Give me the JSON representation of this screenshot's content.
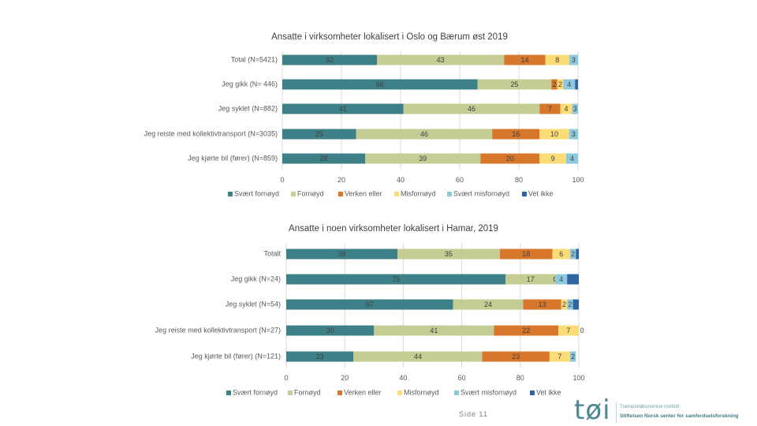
{
  "footer": {
    "page_label": "Side 11",
    "logo_text": "tøi",
    "org_line1": "Transportøkonomisk institutt",
    "org_line2": "Stiftelsen Norsk senter for samferdselsforskning"
  },
  "chart_data": [
    {
      "type": "bar",
      "orientation": "horizontal-stacked",
      "title": "Ansatte i virksomheter lokalisert i Oslo og Bærum øst 2019",
      "xlabel": "",
      "ylabel": "",
      "xlim": [
        0,
        100
      ],
      "xticks": [
        "0",
        "20",
        "40",
        "60",
        "80",
        "100"
      ],
      "grid": true,
      "legend": "bottom",
      "categories": [
        "Total (N=5421)",
        "Jeg gikk (N= 446)",
        "Jeg syklet (N=882)",
        "Jeg reiste med kollektivtransport (N=3035)",
        "Jeg kjørte bil (fører) (N=859)"
      ],
      "series": [
        {
          "name": "Svært fornøyd",
          "color": "#3d8087",
          "show_labels": true,
          "values": [
            32,
            66,
            41,
            25,
            28
          ]
        },
        {
          "name": "Fornøyd",
          "color": "#c5cd94",
          "show_labels": true,
          "values": [
            43,
            25,
            46,
            46,
            39
          ]
        },
        {
          "name": "Verken eller",
          "color": "#d7772c",
          "show_labels": true,
          "values": [
            14,
            2,
            7,
            16,
            20
          ]
        },
        {
          "name": "Misfornøyd",
          "color": "#fbdc77",
          "show_labels": true,
          "values": [
            8,
            2,
            4,
            10,
            9
          ]
        },
        {
          "name": "Svært misfornøyd",
          "color": "#8dc9de",
          "show_labels": true,
          "values": [
            3,
            4,
            3,
            3,
            4
          ]
        },
        {
          "name": "Vet ikke",
          "color": "#2f64a0",
          "show_labels": false,
          "values": [
            0,
            1,
            1,
            0,
            0
          ]
        }
      ]
    },
    {
      "type": "bar",
      "orientation": "horizontal-stacked",
      "title": "Ansatte i noen virksomheter lokalisert i Hamar, 2019",
      "xlabel": "",
      "ylabel": "",
      "xlim": [
        0,
        100
      ],
      "xticks": [
        "0",
        "20",
        "40",
        "60",
        "80",
        "100"
      ],
      "grid": true,
      "legend": "bottom",
      "categories": [
        "Totalt",
        "Jeg gikk (N=24)",
        "Jeg syklet (N=54)",
        "Jeg reiste med kollektivtransport (N=27)",
        "Jeg kjørte bil (fører) (N=121)"
      ],
      "series": [
        {
          "name": "Svært fornøyd",
          "color": "#3d8087",
          "show_labels": true,
          "values": [
            38,
            75,
            57,
            30,
            23
          ]
        },
        {
          "name": "Fornøyd",
          "color": "#c5cd94",
          "show_labels": true,
          "values": [
            35,
            17,
            24,
            41,
            44
          ]
        },
        {
          "name": "Verken eller",
          "color": "#d7772c",
          "show_labels": true,
          "values": [
            18,
            0,
            13,
            22,
            23
          ]
        },
        {
          "name": "Misfornøyd",
          "color": "#fbdc77",
          "show_labels": true,
          "values": [
            6,
            0,
            2,
            7,
            7
          ]
        },
        {
          "name": "Svært misfornøyd",
          "color": "#8dc9de",
          "show_labels": true,
          "values": [
            2,
            4,
            2,
            0,
            2
          ]
        },
        {
          "name": "Vet ikke",
          "color": "#2f64a0",
          "show_labels": false,
          "values": [
            1,
            4,
            2,
            0,
            0
          ]
        }
      ]
    }
  ]
}
